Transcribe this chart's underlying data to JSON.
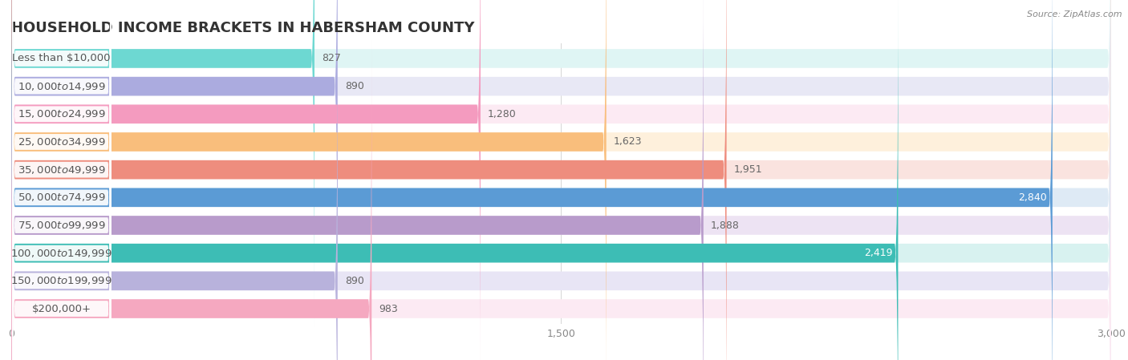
{
  "title": "HOUSEHOLD INCOME BRACKETS IN HABERSHAM COUNTY",
  "source": "Source: ZipAtlas.com",
  "categories": [
    "Less than $10,000",
    "$10,000 to $14,999",
    "$15,000 to $24,999",
    "$25,000 to $34,999",
    "$35,000 to $49,999",
    "$50,000 to $74,999",
    "$75,000 to $99,999",
    "$100,000 to $149,999",
    "$150,000 to $199,999",
    "$200,000+"
  ],
  "values": [
    827,
    890,
    1280,
    1623,
    1951,
    2840,
    1888,
    2419,
    890,
    983
  ],
  "bar_colors": [
    "#6DD8D2",
    "#ABABDF",
    "#F49BBF",
    "#F9BE7C",
    "#EE8D7E",
    "#5B9BD5",
    "#B89BCB",
    "#3DBDB5",
    "#B8B2DC",
    "#F5A8C0"
  ],
  "bar_bg_colors": [
    "#DFF5F4",
    "#E8E8F5",
    "#FCEAF3",
    "#FEF0DC",
    "#FAE3DF",
    "#DEEAF5",
    "#EDE3F3",
    "#D8F2F0",
    "#E8E5F5",
    "#FCEAF3"
  ],
  "value_inside_colors": [
    "#555555",
    "#555555",
    "#555555",
    "#555555",
    "#ffffff",
    "#ffffff",
    "#ffffff",
    "#ffffff",
    "#555555",
    "#555555"
  ],
  "xlim": [
    0,
    3000
  ],
  "xticks": [
    0,
    1500,
    3000
  ],
  "xtick_labels": [
    "0",
    "1,500",
    "3,000"
  ],
  "title_fontsize": 13,
  "label_fontsize": 9.5,
  "value_fontsize": 9,
  "background_color": "#ffffff",
  "grid_color": "#cccccc",
  "inside_label_threshold": 2000
}
